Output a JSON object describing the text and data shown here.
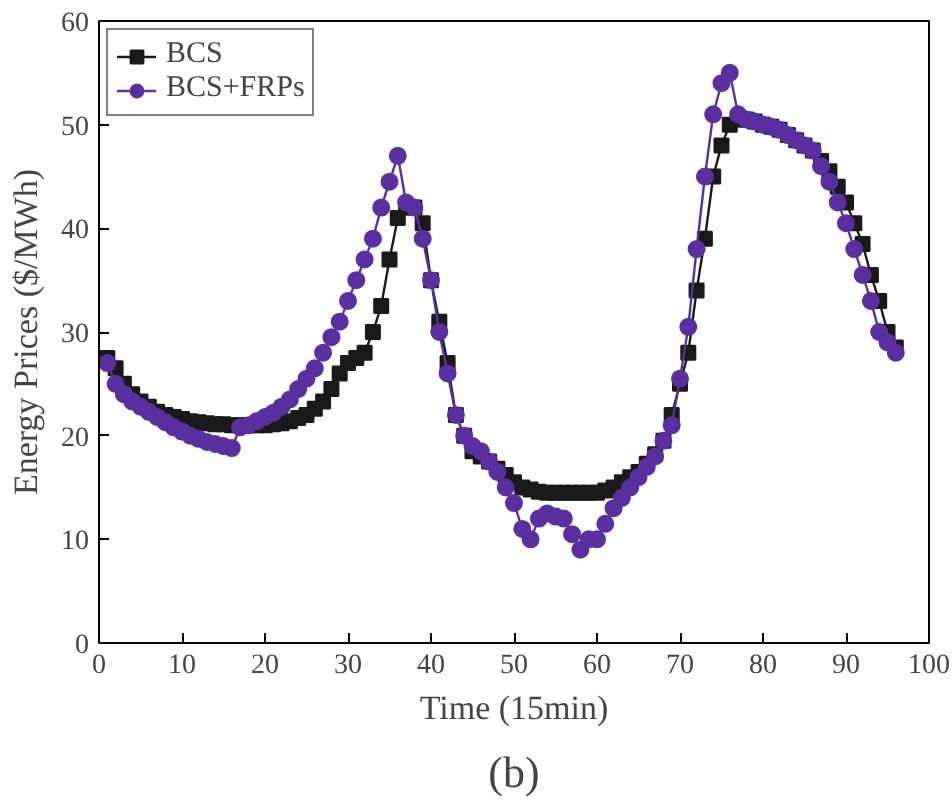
{
  "chart_data": {
    "type": "line",
    "title": "(b)",
    "xlabel": "Time (15min)",
    "ylabel": "Energy Prices ($/MWh)",
    "xlim": [
      0,
      100
    ],
    "ylim": [
      0,
      60
    ],
    "xticks": [
      0,
      10,
      20,
      30,
      40,
      50,
      60,
      70,
      80,
      90,
      100
    ],
    "yticks": [
      0,
      10,
      20,
      30,
      40,
      50,
      60
    ],
    "grid": false,
    "legend": "top left",
    "x": [
      1,
      2,
      3,
      4,
      5,
      6,
      7,
      8,
      9,
      10,
      11,
      12,
      13,
      14,
      15,
      16,
      17,
      18,
      19,
      20,
      21,
      22,
      23,
      24,
      25,
      26,
      27,
      28,
      29,
      30,
      31,
      32,
      33,
      34,
      35,
      36,
      37,
      38,
      39,
      40,
      41,
      42,
      43,
      44,
      45,
      46,
      47,
      48,
      49,
      50,
      51,
      52,
      53,
      54,
      55,
      56,
      57,
      58,
      59,
      60,
      61,
      62,
      63,
      64,
      65,
      66,
      67,
      68,
      69,
      70,
      71,
      72,
      73,
      74,
      75,
      76,
      77,
      78,
      79,
      80,
      81,
      82,
      83,
      84,
      85,
      86,
      87,
      88,
      89,
      90,
      91,
      92,
      93,
      94,
      95,
      96
    ],
    "series": [
      {
        "name": "BCS",
        "color": "#1a1a1a",
        "marker": "square",
        "values": [
          27.5,
          26.5,
          25,
          24,
          23.3,
          22.8,
          22.3,
          22,
          21.8,
          21.6,
          21.4,
          21.3,
          21.2,
          21.1,
          21.1,
          21,
          21,
          21,
          21,
          21,
          21.1,
          21.2,
          21.4,
          21.7,
          22,
          22.6,
          23.3,
          24.5,
          26,
          27,
          27.5,
          28,
          30,
          32.5,
          37,
          41,
          42,
          42,
          40.5,
          35,
          31,
          27,
          22,
          20,
          18.5,
          18,
          17.5,
          16.8,
          16.2,
          15.5,
          15,
          14.8,
          14.6,
          14.5,
          14.5,
          14.5,
          14.5,
          14.5,
          14.5,
          14.5,
          14.7,
          15,
          15.5,
          16,
          16.5,
          17.3,
          18.2,
          19.5,
          22,
          25,
          28,
          34,
          39,
          45,
          48,
          50,
          50.5,
          50.5,
          50.3,
          50,
          49.8,
          49.5,
          49,
          48.5,
          48,
          47.5,
          46.5,
          45.5,
          44,
          42.5,
          40.5,
          38.5,
          35.5,
          33,
          30,
          28.5
        ]
      },
      {
        "name": "BCS+FRPs",
        "color": "#5b2fa0",
        "marker": "circle",
        "values": [
          27,
          25,
          24,
          23.3,
          22.8,
          22.3,
          21.8,
          21.3,
          20.8,
          20.4,
          20,
          19.7,
          19.4,
          19.2,
          19,
          18.8,
          20.8,
          21,
          21.4,
          21.8,
          22.2,
          22.8,
          23.5,
          24.5,
          25.5,
          26.5,
          28,
          29.5,
          31,
          33,
          35,
          37,
          39,
          42,
          44.5,
          47,
          42.5,
          42,
          39,
          35,
          30,
          26,
          22,
          20,
          19,
          18.5,
          17.5,
          16.5,
          15,
          13.5,
          11,
          10,
          12,
          12.5,
          12.2,
          12,
          10.5,
          9,
          10,
          10,
          11.5,
          13,
          14,
          15,
          16,
          17,
          18,
          19.5,
          21,
          25.5,
          30.5,
          38,
          45,
          51,
          54,
          55,
          51,
          50.5,
          50.3,
          50,
          49.8,
          49.5,
          49,
          48.5,
          48,
          47.5,
          46,
          44.5,
          42.5,
          40.5,
          38,
          35.5,
          33,
          30,
          29,
          28
        ]
      }
    ]
  }
}
